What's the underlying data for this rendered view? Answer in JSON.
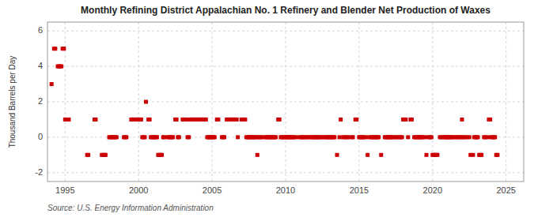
{
  "chart_data": {
    "type": "scatter",
    "title": "Monthly Refining District Appalachian No. 1 Refinery and Blender Net Production of Waxes",
    "y_label": "Thousand Barrels per Day",
    "annotations": [
      "Source: U.S. Energy Information Administration"
    ],
    "color": "#cc0000",
    "marker": "square",
    "grid": true,
    "xlim": [
      1993.8,
      2026.2
    ],
    "ylim": [
      -2.5,
      6.5
    ],
    "xticks": [
      1995,
      2000,
      2005,
      2010,
      2015,
      2020,
      2025
    ],
    "yticks": [
      -2,
      0,
      2,
      4,
      6
    ],
    "x": [
      1994.08,
      1994.25,
      1994.33,
      1994.5,
      1994.58,
      1994.67,
      1994.75,
      1994.83,
      1994.92,
      1995.0,
      1995.08,
      1995.25,
      1996.5,
      1996.58,
      1997.0,
      1997.08,
      1997.5,
      1997.58,
      1997.67,
      1997.75,
      1998.0,
      1998.08,
      1998.17,
      1998.25,
      1998.33,
      1998.42,
      1998.5,
      1999.0,
      1999.08,
      1999.17,
      1999.5,
      1999.58,
      1999.67,
      1999.75,
      1999.83,
      1999.92,
      2000.0,
      2000.08,
      2000.17,
      2000.25,
      2000.33,
      2000.42,
      2000.5,
      2000.67,
      2000.75,
      2000.83,
      2000.92,
      2001.0,
      2001.08,
      2001.17,
      2001.25,
      2001.33,
      2001.42,
      2001.5,
      2001.58,
      2001.67,
      2001.75,
      2002.0,
      2002.08,
      2002.17,
      2002.25,
      2002.33,
      2002.5,
      2002.58,
      2002.67,
      2002.75,
      2003.0,
      2003.08,
      2003.17,
      2003.25,
      2003.33,
      2003.42,
      2003.5,
      2003.58,
      2003.67,
      2003.75,
      2003.83,
      2003.92,
      2004.0,
      2004.08,
      2004.17,
      2004.25,
      2004.33,
      2004.42,
      2004.5,
      2004.58,
      2004.67,
      2004.75,
      2004.83,
      2004.92,
      2005.0,
      2005.08,
      2005.17,
      2005.33,
      2005.42,
      2005.67,
      2005.75,
      2005.83,
      2006.0,
      2006.08,
      2006.17,
      2006.25,
      2006.33,
      2006.42,
      2006.5,
      2006.58,
      2006.67,
      2006.75,
      2007.0,
      2007.08,
      2007.17,
      2007.25,
      2007.33,
      2007.42,
      2007.5,
      2007.58,
      2007.67,
      2007.75,
      2007.83,
      2007.92,
      2008.0,
      2008.08,
      2008.17,
      2008.25,
      2008.33,
      2008.5,
      2008.67,
      2008.75,
      2008.83,
      2008.92,
      2009.0,
      2009.08,
      2009.17,
      2009.25,
      2009.33,
      2009.5,
      2009.58,
      2009.67,
      2009.75,
      2009.83,
      2009.92,
      2010.0,
      2010.08,
      2010.17,
      2010.25,
      2010.33,
      2010.42,
      2010.5,
      2010.58,
      2010.75,
      2011.0,
      2011.08,
      2011.17,
      2011.25,
      2011.33,
      2011.5,
      2011.58,
      2011.75,
      2011.83,
      2011.92,
      2012.0,
      2012.08,
      2012.17,
      2012.25,
      2012.33,
      2012.5,
      2012.58,
      2012.75,
      2012.83,
      2012.92,
      2013.0,
      2013.08,
      2013.17,
      2013.25,
      2013.33,
      2013.5,
      2013.67,
      2013.75,
      2013.92,
      2014.0,
      2014.17,
      2014.25,
      2014.5,
      2014.58,
      2014.75,
      2014.83,
      2015.0,
      2015.08,
      2015.17,
      2015.25,
      2015.33,
      2015.5,
      2015.58,
      2015.75,
      2015.83,
      2015.92,
      2016.0,
      2016.08,
      2016.17,
      2016.25,
      2016.33,
      2016.5,
      2016.75,
      2016.83,
      2016.92,
      2017.0,
      2017.08,
      2017.17,
      2017.25,
      2017.33,
      2017.5,
      2017.58,
      2017.75,
      2017.83,
      2017.92,
      2018.0,
      2018.08,
      2018.17,
      2018.33,
      2018.5,
      2018.58,
      2018.75,
      2018.83,
      2018.92,
      2019.0,
      2019.08,
      2019.17,
      2019.25,
      2019.33,
      2019.5,
      2019.58,
      2019.75,
      2019.83,
      2019.92,
      2020.0,
      2020.08,
      2020.17,
      2020.25,
      2020.33,
      2020.5,
      2020.58,
      2020.75,
      2020.83,
      2020.92,
      2021.0,
      2021.08,
      2021.17,
      2021.25,
      2021.33,
      2021.5,
      2021.58,
      2021.75,
      2021.83,
      2021.92,
      2022.0,
      2022.08,
      2022.17,
      2022.33,
      2022.5,
      2022.58,
      2022.75,
      2022.83,
      2022.92,
      2023.0,
      2023.08,
      2023.17,
      2023.25,
      2023.33,
      2023.5,
      2023.58,
      2023.75,
      2023.83,
      2023.92,
      2024.0,
      2024.08,
      2024.17,
      2024.25,
      2024.33,
      2024.42
    ],
    "values": [
      3.0,
      5.0,
      5.0,
      4.0,
      4.0,
      4.0,
      4.0,
      5.0,
      5.0,
      1.0,
      1.0,
      1.0,
      -1.0,
      -1.0,
      1.0,
      1.0,
      -1.0,
      -1.0,
      -1.0,
      -1.0,
      0.0,
      0.0,
      0.0,
      0.0,
      0.0,
      0.0,
      0.0,
      0.0,
      0.0,
      0.0,
      1.0,
      1.0,
      1.0,
      1.0,
      1.0,
      1.0,
      1.0,
      1.0,
      1.0,
      0.0,
      0.0,
      0.0,
      2.0,
      1.0,
      1.0,
      0.0,
      0.0,
      0.0,
      0.0,
      0.0,
      0.0,
      -1.0,
      -1.0,
      -1.0,
      -1.0,
      0.0,
      0.0,
      0.0,
      0.0,
      0.0,
      0.0,
      0.0,
      1.0,
      1.0,
      0.0,
      0.0,
      1.0,
      1.0,
      1.0,
      1.0,
      0.0,
      0.0,
      1.0,
      1.0,
      1.0,
      1.0,
      1.0,
      1.0,
      1.0,
      1.0,
      1.0,
      1.0,
      1.0,
      1.0,
      1.0,
      1.0,
      0.0,
      0.0,
      0.0,
      0.0,
      0.0,
      0.0,
      0.0,
      1.0,
      1.0,
      0.0,
      0.0,
      0.0,
      1.0,
      1.0,
      1.0,
      1.0,
      1.0,
      1.0,
      1.0,
      1.0,
      1.0,
      0.0,
      1.0,
      1.0,
      1.0,
      1.0,
      0.0,
      0.0,
      0.0,
      0.0,
      0.0,
      0.0,
      0.0,
      0.0,
      0.0,
      -1.0,
      0.0,
      0.0,
      0.0,
      0.0,
      0.0,
      0.0,
      0.0,
      0.0,
      0.0,
      0.0,
      0.0,
      0.0,
      0.0,
      1.0,
      1.0,
      0.0,
      0.0,
      0.0,
      0.0,
      0.0,
      0.0,
      0.0,
      0.0,
      0.0,
      0.0,
      0.0,
      0.0,
      0.0,
      0.0,
      0.0,
      0.0,
      0.0,
      0.0,
      0.0,
      0.0,
      0.0,
      0.0,
      0.0,
      0.0,
      0.0,
      0.0,
      0.0,
      0.0,
      0.0,
      0.0,
      0.0,
      0.0,
      0.0,
      0.0,
      0.0,
      0.0,
      0.0,
      0.0,
      -1.0,
      0.0,
      1.0,
      0.0,
      0.0,
      0.0,
      0.0,
      0.0,
      0.0,
      1.0,
      1.0,
      0.0,
      0.0,
      0.0,
      0.0,
      0.0,
      0.0,
      -1.0,
      0.0,
      0.0,
      0.0,
      0.0,
      0.0,
      0.0,
      0.0,
      0.0,
      -1.0,
      0.0,
      0.0,
      0.0,
      0.0,
      0.0,
      0.0,
      0.0,
      0.0,
      0.0,
      0.0,
      0.0,
      0.0,
      0.0,
      1.0,
      1.0,
      1.0,
      0.0,
      1.0,
      1.0,
      0.0,
      0.0,
      0.0,
      0.0,
      0.0,
      0.0,
      0.0,
      0.0,
      0.0,
      -1.0,
      0.0,
      0.0,
      0.0,
      -1.0,
      -1.0,
      -1.0,
      -1.0,
      -1.0,
      0.0,
      0.0,
      0.0,
      0.0,
      0.0,
      0.0,
      0.0,
      0.0,
      0.0,
      0.0,
      0.0,
      0.0,
      0.0,
      0.0,
      0.0,
      1.0,
      0.0,
      0.0,
      0.0,
      0.0,
      -1.0,
      -1.0,
      0.0,
      0.0,
      0.0,
      0.0,
      -1.0,
      -1.0,
      -1.0,
      0.0,
      0.0,
      0.0,
      1.0,
      1.0,
      0.0,
      0.0,
      0.0,
      0.0,
      -1.0,
      -1.0
    ]
  }
}
